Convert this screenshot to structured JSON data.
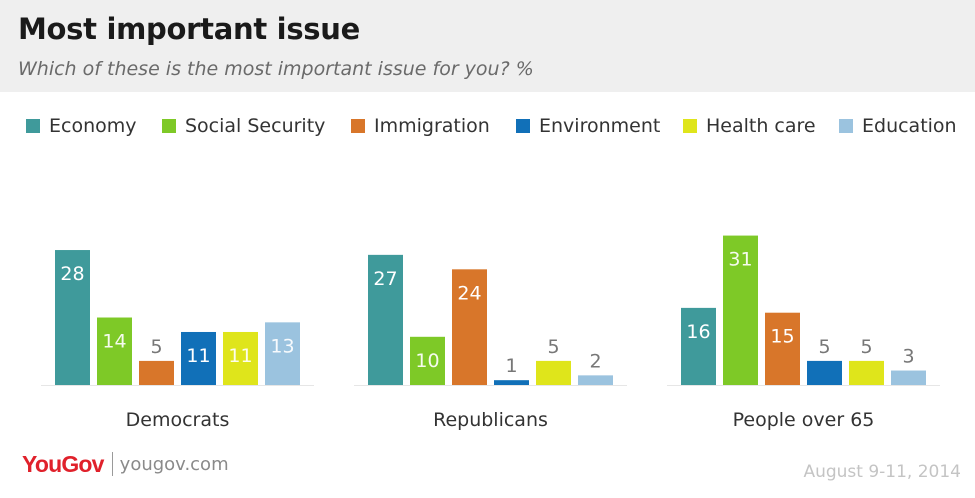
{
  "header": {
    "title": "Most important issue",
    "subtitle": "Which of these is the most important issue for you? %"
  },
  "legend": [
    {
      "label": "Economy",
      "color": "#3f9a9b"
    },
    {
      "label": "Social Security",
      "color": "#7ec927"
    },
    {
      "label": "Immigration",
      "color": "#d8762a"
    },
    {
      "label": "Environment",
      "color": "#1170b8"
    },
    {
      "label": "Health care",
      "color": "#dfe51b"
    },
    {
      "label": "Education",
      "color": "#9bc3df"
    }
  ],
  "chart_data": {
    "type": "bar",
    "categories": [
      "Democrats",
      "Republicans",
      "People over 65"
    ],
    "series": [
      {
        "name": "Economy",
        "values": [
          28,
          27,
          16
        ],
        "color": "#3f9a9b"
      },
      {
        "name": "Social Security",
        "values": [
          14,
          10,
          31
        ],
        "color": "#7ec927"
      },
      {
        "name": "Immigration",
        "values": [
          5,
          24,
          15
        ],
        "color": "#d8762a"
      },
      {
        "name": "Environment",
        "values": [
          11,
          1,
          5
        ],
        "color": "#1170b8"
      },
      {
        "name": "Health care",
        "values": [
          11,
          5,
          5
        ],
        "color": "#dfe51b"
      },
      {
        "name": "Education",
        "values": [
          13,
          2,
          3
        ],
        "color": "#9bc3df"
      }
    ],
    "data_labels": true,
    "grid": false
  },
  "footer": {
    "logo": "YouGov",
    "url": "yougov.com",
    "date": "August 9-11, 2014"
  }
}
